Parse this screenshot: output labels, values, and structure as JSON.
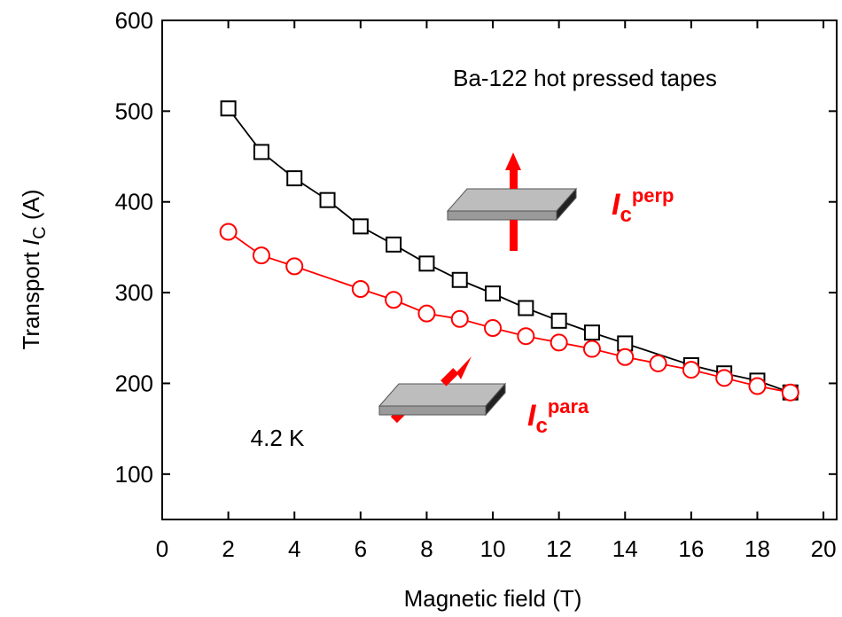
{
  "chart_data": {
    "type": "line",
    "x_label": "Magnetic field (T)",
    "y_label": [
      "Transport ",
      "I",
      "C",
      " (A)"
    ],
    "annotations": {
      "title": "Ba-122 hot pressed tapes",
      "temperature": "4.2 K",
      "perp": [
        "I",
        "c",
        "perp"
      ],
      "para": [
        "I",
        "c",
        "para"
      ]
    },
    "xlim": [
      0,
      20.4
    ],
    "xticks": [
      0,
      2,
      4,
      6,
      8,
      10,
      12,
      14,
      16,
      18,
      20
    ],
    "ylim": [
      50,
      600
    ],
    "yticks": [
      100,
      200,
      300,
      400,
      500,
      600
    ],
    "series": [
      {
        "marker": "square",
        "color": "#000000",
        "x": [
          2,
          3,
          4,
          5,
          6,
          7,
          8,
          9,
          10,
          11,
          12,
          13,
          14,
          16,
          17,
          18,
          19
        ],
        "values": [
          503,
          455,
          426,
          402,
          373,
          353,
          332,
          314,
          299,
          283,
          269,
          256,
          244,
          220,
          211,
          203,
          190
        ]
      },
      {
        "marker": "circle",
        "color": "#ff0000",
        "x": [
          2,
          3,
          4,
          6,
          7,
          8,
          9,
          10,
          11,
          12,
          13,
          14,
          15,
          16,
          17,
          18,
          19
        ],
        "values": [
          367,
          341,
          329,
          304,
          292,
          277,
          271,
          261,
          252,
          245,
          238,
          229,
          222,
          215,
          206,
          197,
          190
        ]
      }
    ]
  }
}
